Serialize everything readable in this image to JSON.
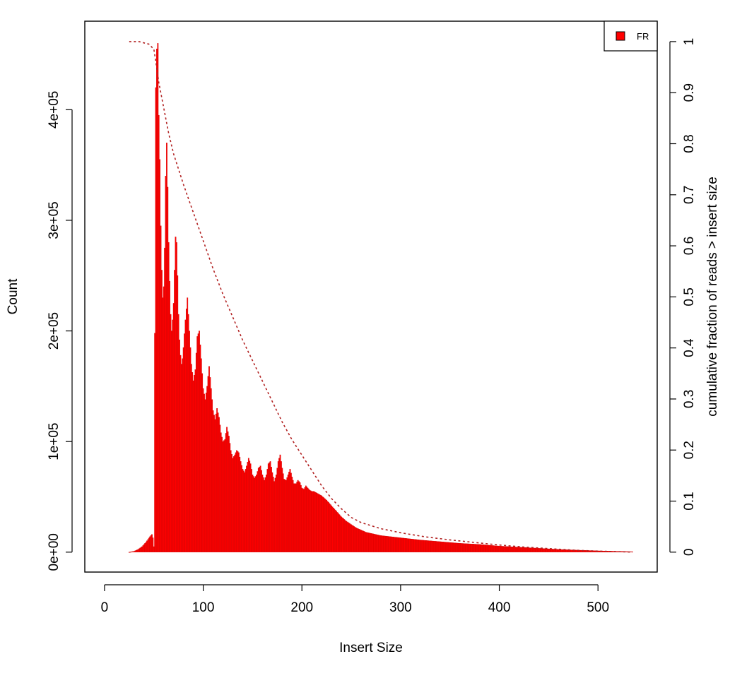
{
  "chart_data": {
    "type": "bar",
    "title": "",
    "xlabel": "Insert Size",
    "ylabel": "Count",
    "y2label": "cumulative fraction of reads > insert size",
    "xlim": [
      -20,
      560
    ],
    "ylim": [
      -18000,
      480000
    ],
    "y2lim": [
      -0.039,
      1.04
    ],
    "x_ticks": [
      0,
      100,
      200,
      300,
      400,
      500
    ],
    "x_tick_labels": [
      "0",
      "100",
      "200",
      "300",
      "400",
      "500"
    ],
    "y_ticks": [
      0,
      100000,
      200000,
      300000,
      400000
    ],
    "y_tick_labels": [
      "0e+00",
      "1e+05",
      "2e+05",
      "3e+05",
      "4e+05"
    ],
    "y2_ticks": [
      0,
      0.1,
      0.2,
      0.3,
      0.4,
      0.5,
      0.6,
      0.7,
      0.8,
      0.9,
      1
    ],
    "y2_tick_labels": [
      "0",
      "0.1",
      "0.2",
      "0.3",
      "0.4",
      "0.5",
      "0.6",
      "0.7",
      "0.8",
      "0.9",
      "1"
    ],
    "legend": {
      "position": "top-right",
      "entries": [
        {
          "label": "FR",
          "color": "#ff0000"
        }
      ]
    },
    "grid": false,
    "bar_color": "#ff0000",
    "bar_border_color": "#cc0000",
    "cumulative_line_color": "#b22222",
    "series": [
      {
        "name": "FR",
        "x_range": [
          25,
          535
        ],
        "envelope": [
          [
            25,
            0
          ],
          [
            30,
            800
          ],
          [
            34,
            2500
          ],
          [
            38,
            5000
          ],
          [
            42,
            9000
          ],
          [
            46,
            14000
          ],
          [
            48,
            16000
          ],
          [
            49,
            13000
          ],
          [
            50,
            5000
          ],
          [
            51,
            198000
          ],
          [
            52,
            420000
          ],
          [
            53,
            455000
          ],
          [
            54,
            460000
          ],
          [
            55,
            395000
          ],
          [
            56,
            355000
          ],
          [
            57,
            295000
          ],
          [
            58,
            255000
          ],
          [
            59,
            230000
          ],
          [
            60,
            240000
          ],
          [
            61,
            275000
          ],
          [
            62,
            340000
          ],
          [
            63,
            370000
          ],
          [
            64,
            330000
          ],
          [
            65,
            280000
          ],
          [
            66,
            245000
          ],
          [
            67,
            215000
          ],
          [
            68,
            200000
          ],
          [
            69,
            210000
          ],
          [
            70,
            225000
          ],
          [
            71,
            255000
          ],
          [
            72,
            285000
          ],
          [
            73,
            280000
          ],
          [
            74,
            250000
          ],
          [
            75,
            215000
          ],
          [
            76,
            192000
          ],
          [
            77,
            178000
          ],
          [
            78,
            170000
          ],
          [
            79,
            175000
          ],
          [
            80,
            185000
          ],
          [
            82,
            210000
          ],
          [
            84,
            230000
          ],
          [
            86,
            200000
          ],
          [
            88,
            170000
          ],
          [
            90,
            155000
          ],
          [
            92,
            165000
          ],
          [
            94,
            195000
          ],
          [
            96,
            200000
          ],
          [
            98,
            175000
          ],
          [
            100,
            148000
          ],
          [
            102,
            138000
          ],
          [
            104,
            150000
          ],
          [
            106,
            168000
          ],
          [
            108,
            148000
          ],
          [
            110,
            128000
          ],
          [
            112,
            120000
          ],
          [
            114,
            130000
          ],
          [
            116,
            122000
          ],
          [
            118,
            108000
          ],
          [
            120,
            100000
          ],
          [
            122,
            102000
          ],
          [
            124,
            113000
          ],
          [
            126,
            105000
          ],
          [
            128,
            92000
          ],
          [
            130,
            85000
          ],
          [
            132,
            88000
          ],
          [
            134,
            92000
          ],
          [
            136,
            90000
          ],
          [
            138,
            82000
          ],
          [
            140,
            75000
          ],
          [
            142,
            72000
          ],
          [
            144,
            78000
          ],
          [
            146,
            85000
          ],
          [
            148,
            80000
          ],
          [
            150,
            70000
          ],
          [
            152,
            67000
          ],
          [
            154,
            70000
          ],
          [
            156,
            76000
          ],
          [
            158,
            78000
          ],
          [
            160,
            70000
          ],
          [
            162,
            65000
          ],
          [
            164,
            70000
          ],
          [
            166,
            80000
          ],
          [
            168,
            82000
          ],
          [
            170,
            72000
          ],
          [
            172,
            64000
          ],
          [
            174,
            70000
          ],
          [
            176,
            82000
          ],
          [
            178,
            88000
          ],
          [
            180,
            76000
          ],
          [
            182,
            66000
          ],
          [
            184,
            65000
          ],
          [
            186,
            70000
          ],
          [
            188,
            75000
          ],
          [
            190,
            68000
          ],
          [
            192,
            62000
          ],
          [
            194,
            62000
          ],
          [
            196,
            65000
          ],
          [
            198,
            63000
          ],
          [
            200,
            58000
          ],
          [
            202,
            57000
          ],
          [
            204,
            60000
          ],
          [
            206,
            58000
          ],
          [
            208,
            56000
          ],
          [
            210,
            55000
          ],
          [
            212,
            55000
          ],
          [
            214,
            54000
          ],
          [
            216,
            53000
          ],
          [
            218,
            52000
          ],
          [
            220,
            51000
          ],
          [
            225,
            47000
          ],
          [
            230,
            42000
          ],
          [
            235,
            37000
          ],
          [
            240,
            32000
          ],
          [
            245,
            28000
          ],
          [
            250,
            25000
          ],
          [
            255,
            22000
          ],
          [
            260,
            20000
          ],
          [
            265,
            18000
          ],
          [
            270,
            17000
          ],
          [
            280,
            15000
          ],
          [
            290,
            14000
          ],
          [
            300,
            13000
          ],
          [
            320,
            11000
          ],
          [
            340,
            9500
          ],
          [
            360,
            8000
          ],
          [
            380,
            7000
          ],
          [
            400,
            5500
          ],
          [
            420,
            4500
          ],
          [
            440,
            3500
          ],
          [
            460,
            2500
          ],
          [
            480,
            1800
          ],
          [
            500,
            1200
          ],
          [
            520,
            700
          ],
          [
            535,
            400
          ]
        ]
      }
    ],
    "cumulative": [
      [
        25,
        1.0
      ],
      [
        35,
        1.0
      ],
      [
        45,
        0.995
      ],
      [
        50,
        0.985
      ],
      [
        52,
        0.96
      ],
      [
        55,
        0.92
      ],
      [
        60,
        0.87
      ],
      [
        65,
        0.82
      ],
      [
        70,
        0.78
      ],
      [
        80,
        0.72
      ],
      [
        90,
        0.665
      ],
      [
        100,
        0.61
      ],
      [
        110,
        0.555
      ],
      [
        120,
        0.505
      ],
      [
        130,
        0.46
      ],
      [
        140,
        0.415
      ],
      [
        150,
        0.375
      ],
      [
        160,
        0.335
      ],
      [
        170,
        0.295
      ],
      [
        180,
        0.255
      ],
      [
        190,
        0.22
      ],
      [
        200,
        0.19
      ],
      [
        210,
        0.16
      ],
      [
        220,
        0.13
      ],
      [
        230,
        0.105
      ],
      [
        240,
        0.085
      ],
      [
        250,
        0.068
      ],
      [
        260,
        0.058
      ],
      [
        280,
        0.046
      ],
      [
        300,
        0.038
      ],
      [
        325,
        0.03
      ],
      [
        350,
        0.024
      ],
      [
        375,
        0.019
      ],
      [
        400,
        0.014
      ],
      [
        425,
        0.01
      ],
      [
        450,
        0.007
      ],
      [
        475,
        0.004
      ],
      [
        500,
        0.002
      ],
      [
        520,
        0.001
      ],
      [
        535,
        0.0
      ]
    ]
  }
}
